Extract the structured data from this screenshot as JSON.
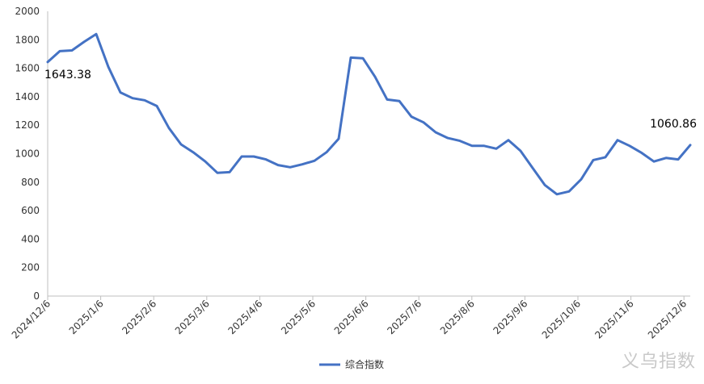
{
  "chart_data": {
    "type": "line",
    "title": "",
    "xlabel": "",
    "ylabel": "",
    "ylim": [
      0,
      2000
    ],
    "yticks": [
      0,
      200,
      400,
      600,
      800,
      1000,
      1200,
      1400,
      1600,
      1800,
      2000
    ],
    "xtick_labels": [
      "2024/12/6",
      "2025/1/6",
      "2025/2/6",
      "2025/3/6",
      "2025/4/6",
      "2025/5/6",
      "2025/6/6",
      "2025/7/6",
      "2025/8/6",
      "2025/9/6",
      "2025/10/6",
      "2025/11/6",
      "2025/12/6"
    ],
    "grid": false,
    "legend_position": "bottom",
    "series": [
      {
        "name": "综合指数",
        "color": "#4472C4",
        "values": [
          1643.38,
          1720,
          1725,
          1785,
          1840,
          1610,
          1430,
          1390,
          1375,
          1335,
          1180,
          1065,
          1010,
          945,
          865,
          870,
          980,
          980,
          960,
          920,
          905,
          925,
          950,
          1010,
          1105,
          1675,
          1670,
          1540,
          1380,
          1370,
          1260,
          1220,
          1150,
          1110,
          1090,
          1055,
          1055,
          1035,
          1095,
          1020,
          900,
          780,
          715,
          735,
          820,
          955,
          975,
          1095,
          1055,
          1005,
          945,
          970,
          960,
          1060.86
        ]
      }
    ],
    "annotations": [
      {
        "index": 0,
        "text": "1643.38"
      },
      {
        "index": 53,
        "text": "1060.86"
      }
    ]
  },
  "watermark": "义乌指数"
}
